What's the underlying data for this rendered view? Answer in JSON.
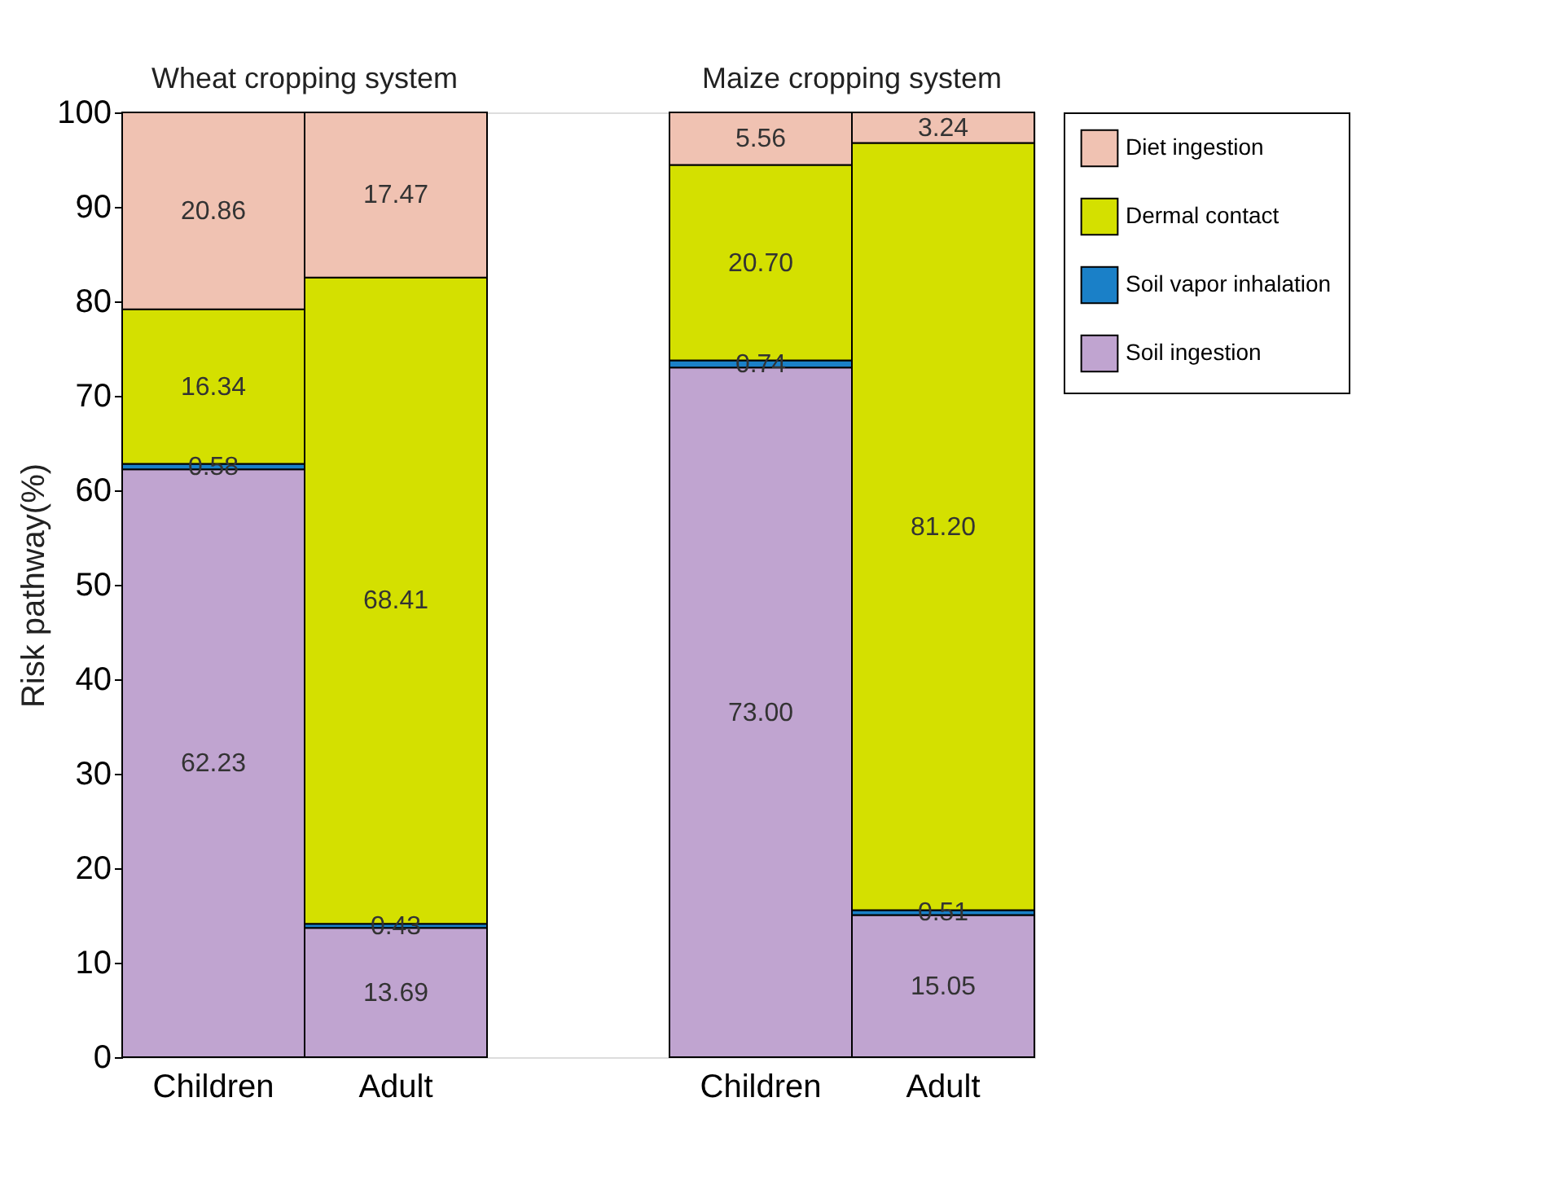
{
  "chart_data": {
    "type": "bar",
    "stacked": true,
    "ylabel": "Risk pathway(%)",
    "categories": [
      "Children",
      "Adult",
      null,
      "Children",
      "Adult"
    ],
    "series": [
      {
        "name": "Soil ingestion",
        "color": "#c0a4d0",
        "values": [
          62.23,
          13.69,
          null,
          73.0,
          15.05
        ],
        "value_labels": [
          "62.23",
          "13.69",
          null,
          "73.00",
          "15.05"
        ]
      },
      {
        "name": "Soil vapor inhalation",
        "color": "#1a80c8",
        "values": [
          0.58,
          0.43,
          null,
          0.74,
          0.51
        ],
        "value_labels": [
          "0.58",
          "0.43",
          null,
          "0.74",
          "0.51"
        ]
      },
      {
        "name": "Dermal contact",
        "color": "#d4e000",
        "values": [
          16.34,
          68.41,
          null,
          20.7,
          81.2
        ],
        "value_labels": [
          "16.34",
          "68.41",
          null,
          "20.70",
          "81.20"
        ]
      },
      {
        "name": "Diet ingestion",
        "color": "#f0c2b2",
        "values": [
          20.86,
          17.47,
          null,
          5.56,
          3.24
        ],
        "value_labels": [
          "20.86",
          "17.47",
          null,
          "5.56",
          "3.24"
        ]
      }
    ],
    "annotations": [
      "Wheat cropping system",
      "Maize cropping system"
    ],
    "ylim": [
      0,
      100
    ],
    "yticks": [
      0,
      10,
      20,
      30,
      40,
      50,
      60,
      70,
      80,
      90,
      100
    ],
    "grid": false,
    "legend": "top right"
  }
}
